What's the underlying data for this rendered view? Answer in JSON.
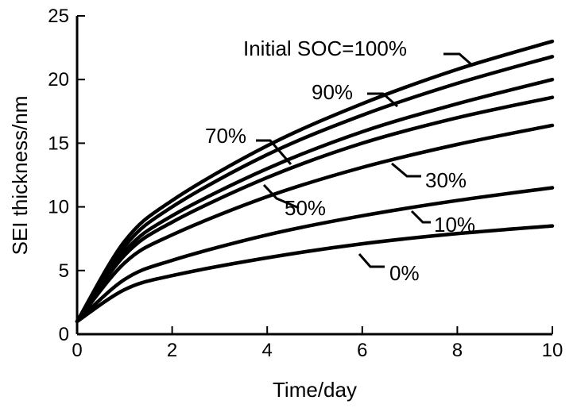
{
  "chart_data": {
    "type": "line",
    "title": "",
    "xlabel": "Time/day",
    "ylabel": "SEI thickness/nm",
    "xlim": [
      0,
      10
    ],
    "ylim": [
      0,
      25
    ],
    "xticks": [
      0,
      2,
      4,
      6,
      8,
      10
    ],
    "yticks": [
      0,
      5,
      10,
      15,
      20,
      25
    ],
    "grid": false,
    "series": [
      {
        "name": "Initial SOC=100%",
        "label": "Initial SOC=100%",
        "x": [
          0,
          1,
          2,
          4,
          6,
          8,
          10
        ],
        "values": [
          1.0,
          7.3,
          10.5,
          14.8,
          18.1,
          20.8,
          23.0
        ]
      },
      {
        "name": "90%",
        "label": "90%",
        "x": [
          0,
          1,
          2,
          4,
          6,
          8,
          10
        ],
        "values": [
          1.0,
          6.9,
          10.0,
          14.1,
          17.2,
          19.7,
          21.8
        ]
      },
      {
        "name": "70%",
        "label": "70%",
        "x": [
          0,
          1,
          2,
          4,
          6,
          8,
          10
        ],
        "values": [
          1.0,
          6.5,
          9.3,
          13.0,
          15.9,
          18.1,
          20.0
        ]
      },
      {
        "name": "50%",
        "label": "50%",
        "x": [
          0,
          1,
          2,
          4,
          6,
          8,
          10
        ],
        "values": [
          1.0,
          6.2,
          8.8,
          12.3,
          15.0,
          17.0,
          18.6
        ]
      },
      {
        "name": "30%",
        "label": "30%",
        "x": [
          0,
          1,
          2,
          4,
          6,
          8,
          10
        ],
        "values": [
          1.0,
          5.6,
          7.8,
          10.8,
          13.1,
          14.9,
          16.4
        ]
      },
      {
        "name": "10%",
        "label": "10%",
        "x": [
          0,
          1,
          2,
          4,
          6,
          8,
          10
        ],
        "values": [
          1.0,
          4.3,
          5.8,
          7.8,
          9.3,
          10.5,
          11.5
        ]
      },
      {
        "name": "0%",
        "label": "0%",
        "x": [
          0,
          1,
          2,
          4,
          6,
          8,
          10
        ],
        "values": [
          1.0,
          3.5,
          4.6,
          6.0,
          7.1,
          7.9,
          8.5
        ]
      }
    ]
  }
}
